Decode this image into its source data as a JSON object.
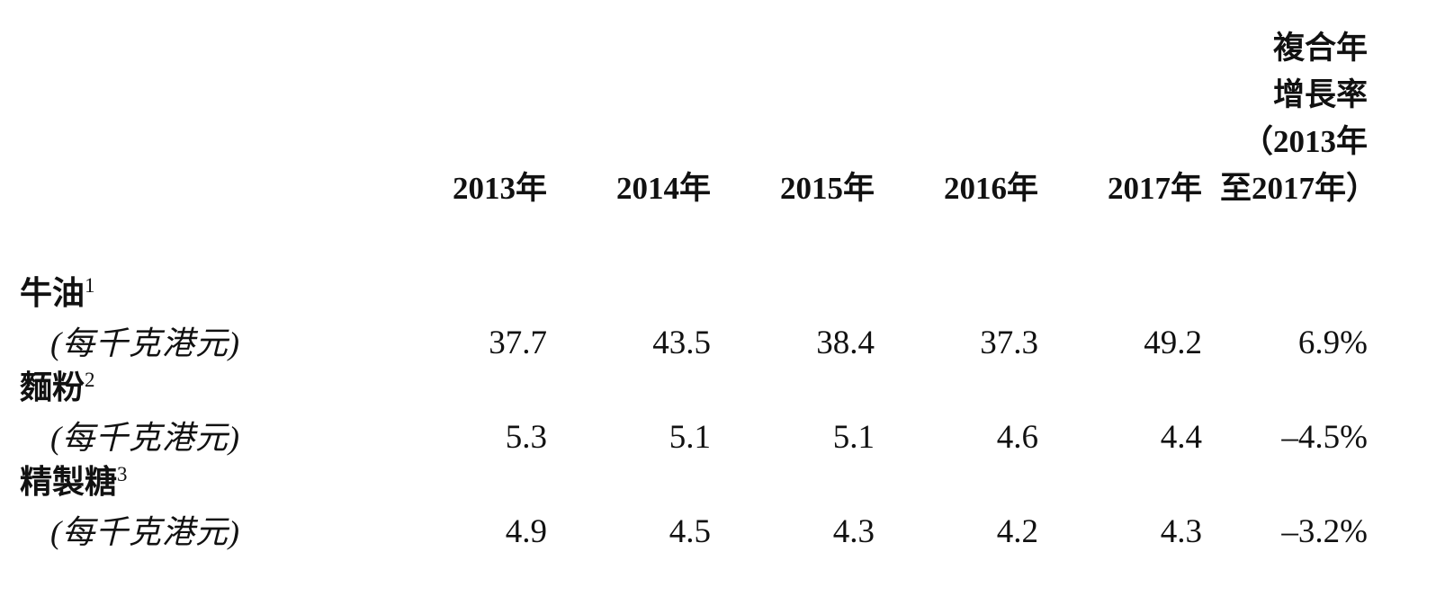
{
  "table": {
    "columns": [
      "2013年",
      "2014年",
      "2015年",
      "2016年",
      "2017年"
    ],
    "cagr_header": [
      "複合年",
      "增長率",
      "（2013年",
      "至2017年）"
    ],
    "rows": [
      {
        "name": "牛油",
        "footnote": "1",
        "unit": "(每千克港元)",
        "values": [
          "37.7",
          "43.5",
          "38.4",
          "37.3",
          "49.2"
        ],
        "cagr": "6.9%"
      },
      {
        "name": "麵粉",
        "footnote": "2",
        "unit": "(每千克港元)",
        "values": [
          "5.3",
          "5.1",
          "5.1",
          "4.6",
          "4.4"
        ],
        "cagr": "–4.5%"
      },
      {
        "name": "精製糖",
        "footnote": "3",
        "unit": "(每千克港元)",
        "values": [
          "4.9",
          "4.5",
          "4.3",
          "4.2",
          "4.3"
        ],
        "cagr": "–3.2%"
      }
    ]
  }
}
